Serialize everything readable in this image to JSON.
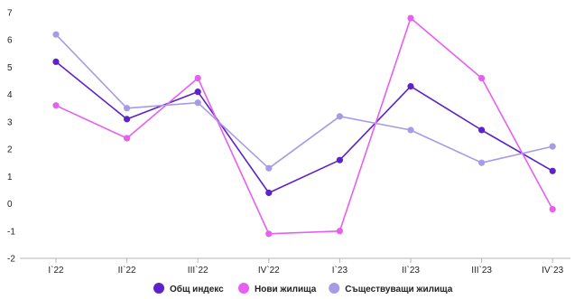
{
  "chart_data": {
    "type": "line",
    "categories": [
      "I`22",
      "II`22",
      "III`22",
      "IV`22",
      "I`23",
      "II`23",
      "III`23",
      "IV`23"
    ],
    "series": [
      {
        "name": "Общ индекс",
        "color": "#5b23c9",
        "values": [
          5.2,
          3.1,
          4.1,
          0.4,
          1.6,
          4.3,
          2.7,
          1.2
        ]
      },
      {
        "name": "Нови жилища",
        "color": "#e75ff0",
        "values": [
          3.6,
          2.4,
          4.6,
          -1.1,
          -1.0,
          6.8,
          4.6,
          -0.2
        ]
      },
      {
        "name": "Съществуващи жилища",
        "color": "#a99ae6",
        "values": [
          6.2,
          3.5,
          3.7,
          1.3,
          3.2,
          2.7,
          1.5,
          2.1
        ]
      }
    ],
    "ylim": [
      -2,
      7
    ],
    "yticks": [
      "7",
      "6",
      "5",
      "4",
      "3",
      "2",
      "1",
      "0",
      "-1",
      "-2"
    ],
    "grid": false,
    "legend_position": "bottom-center",
    "title": "",
    "xlabel": "",
    "ylabel": ""
  }
}
